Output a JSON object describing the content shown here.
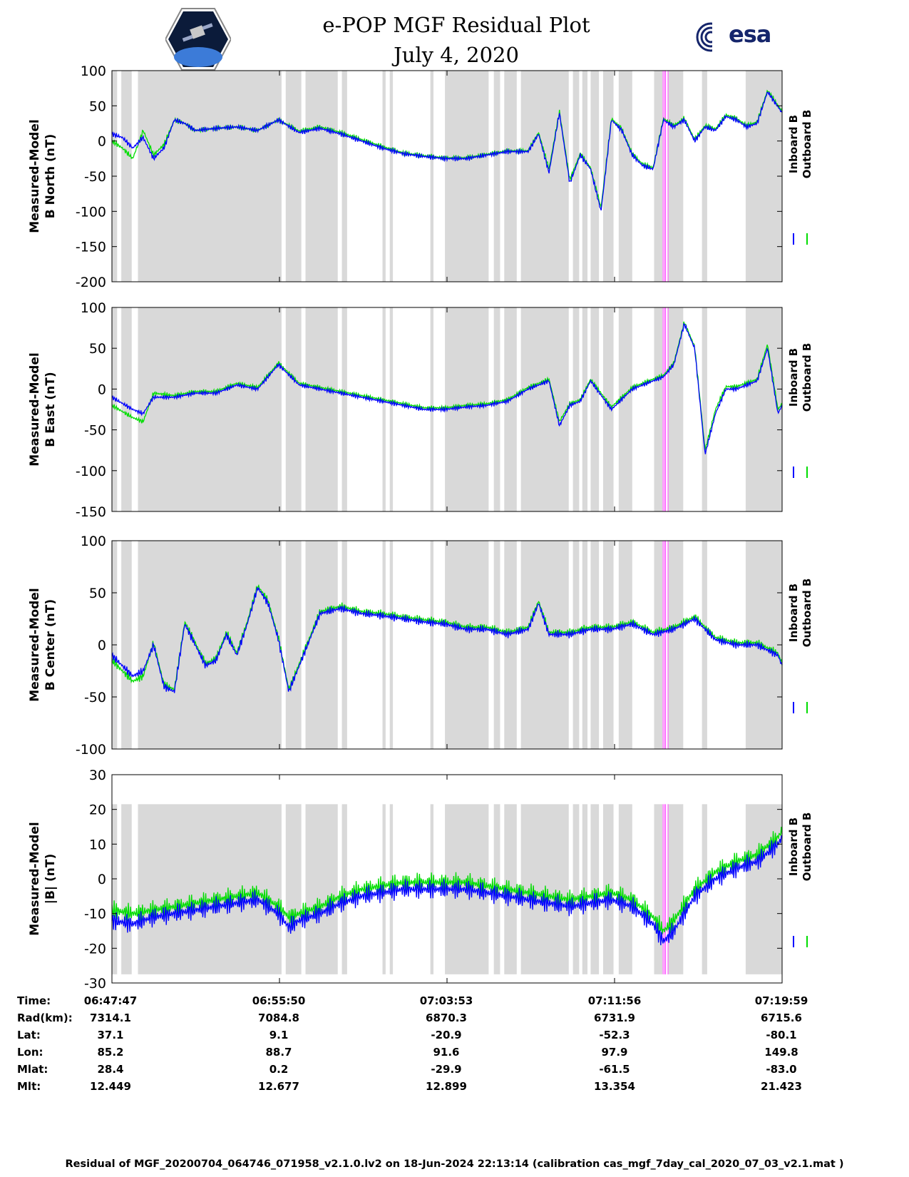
{
  "header": {
    "title": "e-POP MGF Residual Plot",
    "date": "July 4, 2020",
    "logo_left": "cassiope-mission-logo",
    "logo_right_text": "esa"
  },
  "colors": {
    "inboard": "#0000ff",
    "outboard": "#00dd00",
    "shade": "#d9d9d9",
    "marker": "#ff66ff"
  },
  "chart_data": [
    {
      "type": "line",
      "ylabel": [
        "Measured-Model",
        "B North (nT)"
      ],
      "ylim": [
        -200,
        100
      ],
      "yticks": [
        100,
        50,
        0,
        -50,
        -100,
        -150,
        -200
      ],
      "xlim": [
        0,
        32.2
      ],
      "legend": [
        "Inboard B",
        "Outboard B"
      ],
      "legend_placement": "right, vertical",
      "series": [
        {
          "name": "Inboard B",
          "x": [
            0,
            0.5,
            1,
            1.5,
            2,
            2.5,
            3,
            3.5,
            4,
            5,
            6,
            7,
            8,
            9,
            10,
            11,
            12,
            13,
            14,
            15,
            16,
            17,
            18,
            19,
            20,
            20.5,
            21,
            21.5,
            22,
            22.5,
            23,
            23.5,
            24,
            24.5,
            25,
            25.5,
            26,
            26.5,
            27,
            27.5,
            28,
            28.5,
            29,
            29.5,
            30,
            30.5,
            31,
            31.5,
            32.2
          ],
          "values": [
            10,
            5,
            -10,
            5,
            -25,
            -10,
            30,
            25,
            15,
            18,
            20,
            15,
            30,
            12,
            18,
            10,
            0,
            -10,
            -18,
            -22,
            -25,
            -25,
            -20,
            -15,
            -15,
            10,
            -45,
            40,
            -60,
            -20,
            -40,
            -100,
            30,
            15,
            -20,
            -35,
            -40,
            30,
            20,
            30,
            0,
            20,
            15,
            35,
            30,
            20,
            25,
            70,
            40
          ]
        },
        {
          "name": "Outboard B",
          "x": [
            0,
            0.5,
            1,
            1.5,
            2,
            2.5,
            3,
            3.5,
            4,
            5,
            6,
            7,
            8,
            9,
            10,
            11,
            12,
            13,
            14,
            15,
            16,
            17,
            18,
            19,
            20,
            20.5,
            21,
            21.5,
            22,
            22.5,
            23,
            23.5,
            24,
            24.5,
            25,
            25.5,
            26,
            26.5,
            27,
            27.5,
            28,
            28.5,
            29,
            29.5,
            30,
            30.5,
            31,
            31.5,
            32.2
          ],
          "values": [
            0,
            -10,
            -25,
            15,
            -20,
            -5,
            30,
            25,
            15,
            18,
            20,
            15,
            30,
            14,
            20,
            12,
            2,
            -8,
            -17,
            -21,
            -24,
            -24,
            -19,
            -14,
            -14,
            12,
            -40,
            42,
            -55,
            -18,
            -38,
            -95,
            32,
            17,
            -18,
            -33,
            -38,
            32,
            22,
            32,
            2,
            22,
            17,
            37,
            32,
            22,
            27,
            72,
            42
          ]
        }
      ]
    },
    {
      "type": "line",
      "ylabel": [
        "Measured-Model",
        "B East (nT)"
      ],
      "ylim": [
        -150,
        100
      ],
      "yticks": [
        100,
        50,
        0,
        -50,
        -100,
        -150
      ],
      "xlim": [
        0,
        32.2
      ],
      "legend": [
        "Inboard B",
        "Outboard B"
      ],
      "legend_placement": "right, vertical",
      "series": [
        {
          "name": "Inboard B",
          "x": [
            0,
            1,
            1.5,
            2,
            3,
            4,
            5,
            6,
            7,
            7.5,
            8,
            9,
            10,
            11,
            12,
            13,
            14,
            15,
            16,
            17,
            18,
            19,
            20,
            21,
            21.5,
            22,
            22.5,
            23,
            24,
            25,
            26,
            26.5,
            27,
            27.5,
            28,
            28.5,
            29,
            29.5,
            30,
            31,
            31.5,
            32,
            32.2
          ],
          "values": [
            -10,
            -25,
            -30,
            -10,
            -10,
            -5,
            -5,
            5,
            0,
            15,
            30,
            5,
            0,
            -5,
            -10,
            -15,
            -20,
            -25,
            -25,
            -22,
            -20,
            -15,
            0,
            10,
            -45,
            -20,
            -15,
            10,
            -25,
            0,
            10,
            15,
            30,
            80,
            50,
            -80,
            -30,
            0,
            0,
            10,
            50,
            -30,
            -20
          ]
        },
        {
          "name": "Outboard B",
          "x": [
            0,
            1,
            1.5,
            2,
            3,
            4,
            5,
            6,
            7,
            7.5,
            8,
            9,
            10,
            11,
            12,
            13,
            14,
            15,
            16,
            17,
            18,
            19,
            20,
            21,
            21.5,
            22,
            22.5,
            23,
            24,
            25,
            26,
            26.5,
            27,
            27.5,
            28,
            28.5,
            29,
            29.5,
            30,
            31,
            31.5,
            32,
            32.2
          ],
          "values": [
            -20,
            -35,
            -40,
            -5,
            -8,
            -3,
            -3,
            7,
            2,
            17,
            32,
            7,
            2,
            -3,
            -8,
            -13,
            -18,
            -23,
            -23,
            -20,
            -18,
            -13,
            2,
            12,
            -40,
            -18,
            -13,
            12,
            -22,
            2,
            12,
            17,
            32,
            82,
            52,
            -75,
            -25,
            3,
            3,
            12,
            55,
            -25,
            -18
          ]
        }
      ]
    },
    {
      "type": "line",
      "ylabel": [
        "Measured-Model",
        "B Center (nT)"
      ],
      "ylim": [
        -100,
        100
      ],
      "yticks": [
        100,
        50,
        0,
        -50,
        -100
      ],
      "xlim": [
        0,
        32.2
      ],
      "legend": [
        "Inboard B",
        "Outboard B"
      ],
      "legend_placement": "right, vertical",
      "series": [
        {
          "name": "Inboard B",
          "x": [
            0,
            0.5,
            1,
            1.5,
            2,
            2.5,
            3,
            3.5,
            4,
            4.5,
            5,
            5.5,
            6,
            6.5,
            7,
            7.5,
            8,
            8.5,
            9,
            10,
            11,
            12,
            13,
            14,
            15,
            16,
            17,
            18,
            19,
            20,
            20.5,
            21,
            22,
            23,
            24,
            25,
            26,
            27,
            28,
            29,
            30,
            31,
            32,
            32.2
          ],
          "values": [
            -10,
            -20,
            -30,
            -25,
            0,
            -40,
            -45,
            20,
            0,
            -20,
            -15,
            10,
            -10,
            20,
            55,
            40,
            5,
            -45,
            -20,
            30,
            35,
            30,
            28,
            25,
            22,
            20,
            15,
            15,
            10,
            15,
            40,
            10,
            10,
            15,
            15,
            20,
            10,
            15,
            25,
            5,
            0,
            0,
            -10,
            -20
          ]
        },
        {
          "name": "Outboard B",
          "x": [
            0,
            0.5,
            1,
            1.5,
            2,
            2.5,
            3,
            3.5,
            4,
            4.5,
            5,
            5.5,
            6,
            6.5,
            7,
            7.5,
            8,
            8.5,
            9,
            10,
            11,
            12,
            13,
            14,
            15,
            16,
            17,
            18,
            19,
            20,
            20.5,
            21,
            22,
            23,
            24,
            25,
            26,
            27,
            28,
            29,
            30,
            31,
            32,
            32.2
          ],
          "values": [
            -15,
            -25,
            -35,
            -30,
            2,
            -38,
            -43,
            22,
            2,
            -18,
            -13,
            12,
            -8,
            22,
            57,
            42,
            7,
            -43,
            -18,
            32,
            37,
            32,
            30,
            27,
            24,
            22,
            17,
            17,
            12,
            17,
            42,
            12,
            12,
            17,
            17,
            22,
            12,
            17,
            27,
            7,
            2,
            2,
            -8,
            -18
          ]
        }
      ]
    },
    {
      "type": "line",
      "ylabel": [
        "Measured-Model",
        "|B| (nT)"
      ],
      "ylim": [
        -30,
        30
      ],
      "yticks": [
        30,
        20,
        10,
        0,
        -10,
        -20,
        -30
      ],
      "xlim": [
        0,
        32.2
      ],
      "legend": [
        "Inboard B",
        "Outboard B"
      ],
      "legend_placement": "right, vertical",
      "series": [
        {
          "name": "Inboard B",
          "x": [
            0,
            1,
            2,
            3,
            4,
            5,
            6,
            7,
            8,
            8.5,
            9,
            10,
            11,
            12,
            13,
            14,
            15,
            16,
            17,
            18,
            19,
            20,
            21,
            22,
            23,
            24,
            25,
            26,
            26.5,
            27,
            28,
            29,
            30,
            31,
            32,
            32.2
          ],
          "values": [
            -12,
            -13,
            -11,
            -10,
            -9,
            -8,
            -7,
            -6,
            -10,
            -14,
            -12,
            -10,
            -7,
            -5,
            -4,
            -3,
            -3,
            -3,
            -3,
            -4,
            -5,
            -6,
            -7,
            -8,
            -7,
            -6,
            -8,
            -13,
            -18,
            -15,
            -5,
            0,
            3,
            5,
            10,
            12
          ]
        },
        {
          "name": "Outboard B",
          "x": [
            0,
            1,
            2,
            3,
            4,
            5,
            6,
            7,
            8,
            8.5,
            9,
            10,
            11,
            12,
            13,
            14,
            15,
            16,
            17,
            18,
            19,
            20,
            21,
            22,
            23,
            24,
            25,
            26,
            26.5,
            27,
            28,
            29,
            30,
            31,
            32,
            32.2
          ],
          "values": [
            -9,
            -10,
            -9,
            -8,
            -7,
            -6,
            -5,
            -4,
            -8,
            -11,
            -10,
            -8,
            -5,
            -3,
            -2,
            -1,
            -1,
            -1,
            -1,
            -2,
            -3,
            -4,
            -5,
            -6,
            -5,
            -4,
            -6,
            -11,
            -15,
            -12,
            -3,
            2,
            5,
            7,
            12,
            14
          ]
        }
      ]
    }
  ],
  "shading_intervals": [
    [
      0,
      0.25
    ],
    [
      0.45,
      0.95
    ],
    [
      1.25,
      8.15
    ],
    [
      8.35,
      9.1
    ],
    [
      9.3,
      10.85
    ],
    [
      11.05,
      11.3
    ],
    [
      13.0,
      13.15
    ],
    [
      13.35,
      13.5
    ],
    [
      15.3,
      15.45
    ],
    [
      16.0,
      18.1
    ],
    [
      18.35,
      18.65
    ],
    [
      18.85,
      19.45
    ],
    [
      19.65,
      21.95
    ],
    [
      22.15,
      22.45
    ],
    [
      22.6,
      22.85
    ],
    [
      23.0,
      23.4
    ],
    [
      23.6,
      24.1
    ],
    [
      24.35,
      25.0
    ],
    [
      26.05,
      26.45
    ],
    [
      26.7,
      27.45
    ],
    [
      28.35,
      28.6
    ],
    [
      30.45,
      32.2
    ]
  ],
  "marker_lines": [
    26.48,
    26.55,
    26.6,
    26.72
  ],
  "legend_labels": {
    "inboard": "Inboard B",
    "outboard": "Outboard B"
  },
  "ephemeris": {
    "labels": [
      "Time:",
      "Rad(km):",
      "Lat:",
      "Lon:",
      "Mlat:",
      "Mlt:"
    ],
    "columns": [
      [
        "06:47:47",
        "7314.1",
        "37.1",
        "85.2",
        "28.4",
        "12.449"
      ],
      [
        "06:55:50",
        "7084.8",
        "9.1",
        "88.7",
        "0.2",
        "12.677"
      ],
      [
        "07:03:53",
        "6870.3",
        "-20.9",
        "91.6",
        "-29.9",
        "12.899"
      ],
      [
        "07:11:56",
        "6731.9",
        "-52.3",
        "97.9",
        "-61.5",
        "13.354"
      ],
      [
        "07:19:59",
        "6715.6",
        "-80.1",
        "149.8",
        "-83.0",
        "21.423"
      ]
    ]
  },
  "footer": "Residual of MGF_20200704_064746_071958_v2.1.0.lv2 on 18-Jun-2024 22:13:14 (calibration cas_mgf_7day_cal_2020_07_03_v2.1.mat )"
}
